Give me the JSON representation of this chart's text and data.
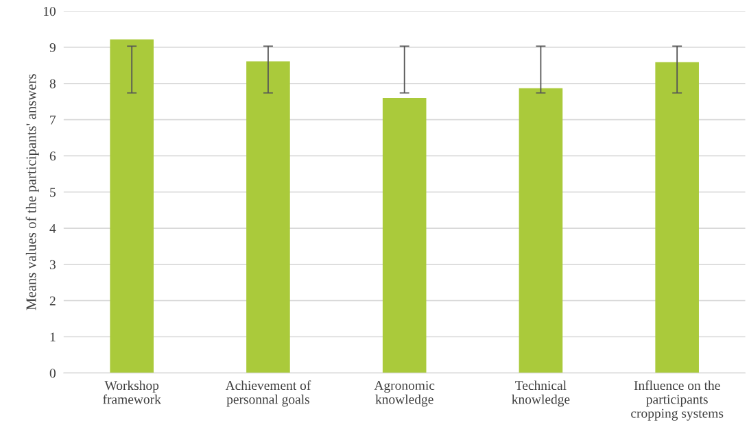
{
  "chart_data": {
    "type": "bar",
    "categories": [
      "Workshop\nframework",
      "Achievement of\npersonnal goals",
      "Agronomic\nknowledge",
      "Technical\nknowledge",
      "Influence on the\nparticipants\ncropping systems"
    ],
    "values": [
      9.22,
      8.61,
      7.6,
      7.87,
      8.59
    ],
    "color": "#aaca3b",
    "errors": [
      [
        7.74,
        9.03
      ],
      [
        7.74,
        9.03
      ],
      [
        7.74,
        9.03
      ],
      [
        7.74,
        9.03
      ],
      [
        7.74,
        9.03
      ]
    ],
    "ylabel": "Means values of the participants' answers",
    "ylim": [
      0,
      10
    ],
    "yticks": [
      0,
      1,
      2,
      3,
      4,
      5,
      6,
      7,
      8,
      9,
      10
    ],
    "grid": "y"
  }
}
